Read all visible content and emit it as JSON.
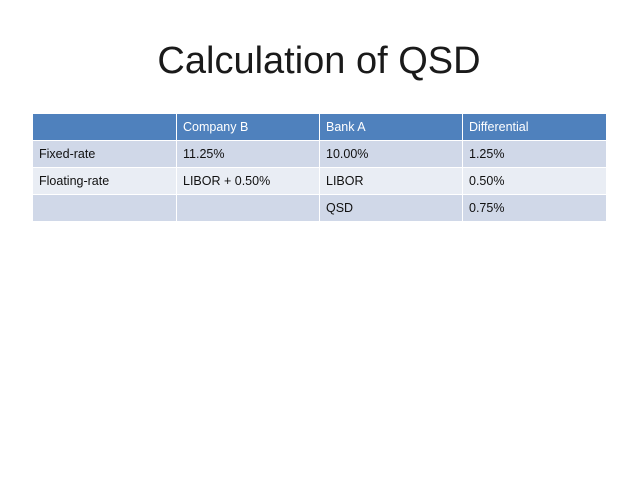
{
  "slide": {
    "title": "Calculation of QSD"
  },
  "table": {
    "headers": [
      "",
      "Company B",
      "Bank A",
      "Differential"
    ],
    "rows": [
      [
        "Fixed-rate",
        "11.25%",
        "10.00%",
        "1.25%"
      ],
      [
        "Floating-rate",
        "LIBOR + 0.50%",
        "LIBOR",
        "0.50%"
      ],
      [
        "",
        "",
        "QSD",
        "0.75%"
      ]
    ]
  },
  "colors": {
    "header_bg": "#4f81bd",
    "row_dark_bg": "#d0d8e8",
    "row_light_bg": "#e9edf4"
  }
}
